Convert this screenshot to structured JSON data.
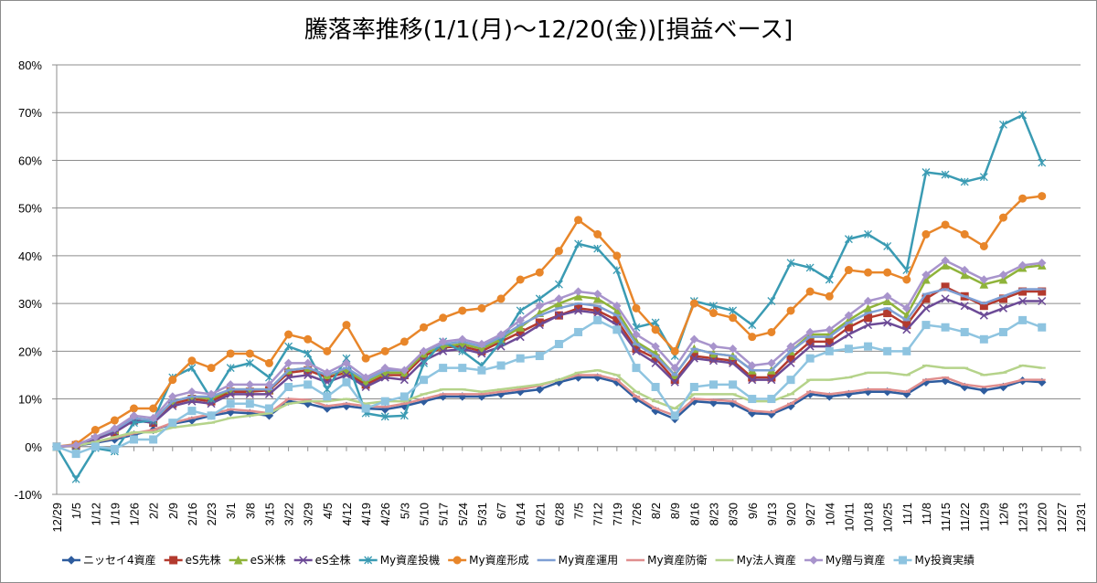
{
  "chart_data": {
    "type": "line",
    "title": "騰落率推移(1/1(月)～12/20(金))[損益ベース]",
    "xlabel": "",
    "ylabel": "",
    "ylim": [
      -0.1,
      0.8
    ],
    "y_ticks": [
      "-10%",
      "0%",
      "10%",
      "20%",
      "30%",
      "40%",
      "50%",
      "60%",
      "70%",
      "80%"
    ],
    "x_ticks": [
      "12/29",
      "1/5",
      "1/12",
      "1/19",
      "1/26",
      "2/2",
      "2/9",
      "2/16",
      "2/23",
      "3/1",
      "3/8",
      "3/15",
      "3/22",
      "3/29",
      "4/5",
      "4/12",
      "4/19",
      "4/26",
      "5/3",
      "5/10",
      "5/17",
      "5/24",
      "5/31",
      "6/7",
      "6/14",
      "6/21",
      "6/28",
      "7/5",
      "7/12",
      "7/19",
      "7/26",
      "8/2",
      "8/9",
      "8/16",
      "8/23",
      "8/30",
      "9/6",
      "9/13",
      "9/20",
      "9/27",
      "10/4",
      "10/11",
      "10/18",
      "10/25",
      "11/1",
      "11/8",
      "11/15",
      "11/22",
      "11/29",
      "12/6",
      "12/13",
      "12/20",
      "12/27",
      "12/31"
    ],
    "grid": "horizontal",
    "legend_position": "bottom",
    "series": [
      {
        "name": "ニッセイ4資産",
        "color": "#2e5c9e",
        "marker": "diamond",
        "values": [
          0,
          0.2,
          0.8,
          1.5,
          2.5,
          3.5,
          4.8,
          5.5,
          6.5,
          7.2,
          7.0,
          6.5,
          9.5,
          9.0,
          8.0,
          8.5,
          8.0,
          7.8,
          8.5,
          9.5,
          10.5,
          10.5,
          10.5,
          11.0,
          11.5,
          12.0,
          13.5,
          14.5,
          14.5,
          13.5,
          10.0,
          7.5,
          5.8,
          9.5,
          9.2,
          9.0,
          7.0,
          6.8,
          8.5,
          11.0,
          10.5,
          11.0,
          11.5,
          11.5,
          11.0,
          13.5,
          13.8,
          12.5,
          11.8,
          12.5,
          13.8,
          13.5
        ]
      },
      {
        "name": "eS先株",
        "color": "#b33a2e",
        "marker": "square",
        "values": [
          0,
          0.3,
          1.5,
          3.0,
          5.5,
          5.0,
          9.0,
          10.0,
          9.5,
          11.5,
          11.5,
          11.8,
          15.5,
          16.0,
          14.5,
          15.5,
          13.0,
          15.0,
          15.0,
          19.0,
          20.8,
          21.0,
          20.0,
          22.0,
          24.0,
          26.0,
          27.5,
          29.0,
          28.5,
          26.5,
          20.5,
          18.5,
          14.0,
          19.0,
          18.5,
          18.0,
          14.5,
          14.5,
          18.5,
          22.0,
          22.0,
          25.0,
          27.0,
          28.0,
          25.5,
          31.0,
          33.5,
          31.5,
          29.5,
          31.0,
          32.5,
          32.5
        ]
      },
      {
        "name": "eS米株",
        "color": "#8fb33a",
        "marker": "triangle",
        "values": [
          0,
          0.2,
          1.8,
          3.5,
          6.0,
          5.5,
          9.5,
          10.5,
          10.0,
          12.0,
          12.0,
          12.0,
          16.0,
          16.5,
          15.0,
          16.0,
          13.5,
          15.5,
          15.5,
          19.5,
          21.0,
          21.5,
          20.5,
          22.5,
          25.0,
          28.0,
          30.0,
          31.5,
          31.0,
          28.5,
          22.0,
          19.5,
          15.0,
          20.5,
          19.5,
          19.0,
          16.0,
          16.0,
          20.0,
          23.5,
          23.5,
          26.5,
          29.0,
          30.5,
          27.5,
          35.0,
          38.0,
          36.0,
          34.0,
          35.0,
          37.5,
          38.0
        ]
      },
      {
        "name": "eS全株",
        "color": "#6c4a96",
        "marker": "x",
        "values": [
          0,
          0.1,
          1.5,
          3.0,
          5.5,
          5.0,
          8.5,
          9.5,
          9.0,
          11.0,
          11.0,
          11.0,
          14.5,
          15.0,
          13.5,
          15.0,
          12.5,
          14.5,
          14.0,
          18.0,
          20.0,
          20.5,
          19.5,
          21.0,
          23.0,
          25.5,
          27.5,
          28.5,
          28.0,
          25.5,
          20.0,
          17.5,
          13.5,
          18.5,
          18.0,
          17.5,
          14.0,
          14.0,
          17.5,
          21.0,
          21.0,
          23.5,
          25.5,
          26.0,
          24.5,
          29.0,
          31.0,
          29.5,
          27.5,
          29.0,
          30.5,
          30.5
        ]
      },
      {
        "name": "My資産投機",
        "color": "#3a9bb3",
        "marker": "asterisk",
        "values": [
          0,
          -6.8,
          -0.3,
          -1.0,
          5.0,
          5.5,
          14.5,
          16.5,
          10.0,
          16.5,
          17.5,
          14.5,
          21.0,
          19.5,
          12.0,
          18.5,
          7.0,
          6.3,
          6.5,
          17.5,
          22.0,
          20.0,
          17.0,
          22.0,
          28.5,
          31.0,
          34.0,
          42.5,
          41.5,
          37.0,
          25.0,
          26.0,
          19.0,
          30.5,
          29.5,
          28.5,
          25.5,
          30.5,
          38.5,
          37.5,
          35.0,
          43.5,
          44.5,
          42.0,
          37.0,
          57.5,
          57.0,
          55.5,
          56.5,
          67.5,
          69.5,
          59.5
        ]
      },
      {
        "name": "My資産形成",
        "color": "#e8862a",
        "marker": "circle",
        "values": [
          0,
          0.5,
          3.5,
          5.5,
          8.0,
          8.0,
          14.0,
          18.0,
          16.5,
          19.5,
          19.5,
          17.5,
          23.5,
          22.5,
          20.0,
          25.5,
          18.5,
          20.0,
          22.0,
          25.0,
          27.0,
          28.5,
          29.0,
          31.0,
          35.0,
          36.5,
          41.0,
          47.5,
          44.5,
          40.0,
          29.0,
          24.5,
          20.0,
          30.0,
          28.0,
          27.0,
          23.0,
          24.0,
          28.5,
          32.5,
          31.5,
          37.0,
          36.5,
          36.5,
          35.0,
          44.5,
          46.5,
          44.5,
          42.0,
          48.0,
          52.0,
          52.5
        ]
      },
      {
        "name": "My資産運用",
        "color": "#7e9fd4",
        "marker": "dash",
        "values": [
          0,
          0.3,
          2.0,
          3.5,
          6.0,
          5.5,
          9.5,
          10.5,
          10.5,
          12.0,
          12.0,
          12.0,
          16.0,
          16.5,
          15.0,
          16.5,
          14.0,
          16.0,
          16.0,
          20.0,
          21.5,
          22.0,
          21.0,
          23.0,
          25.5,
          27.5,
          29.0,
          30.0,
          29.5,
          27.5,
          21.5,
          19.0,
          15.0,
          20.5,
          19.5,
          19.0,
          16.0,
          16.0,
          20.0,
          23.0,
          23.0,
          26.0,
          28.0,
          29.0,
          26.5,
          32.0,
          33.0,
          31.5,
          30.0,
          31.5,
          33.0,
          33.0
        ]
      },
      {
        "name": "My資産防衛",
        "color": "#e08e8e",
        "marker": "dash",
        "values": [
          0,
          0.2,
          1.0,
          1.8,
          2.8,
          3.5,
          5.0,
          6.0,
          6.8,
          7.8,
          7.5,
          7.0,
          10.0,
          9.8,
          8.5,
          9.0,
          8.5,
          8.3,
          9.0,
          10.0,
          11.0,
          11.0,
          11.0,
          11.5,
          12.0,
          12.8,
          14.0,
          15.0,
          15.0,
          14.0,
          10.5,
          8.0,
          6.5,
          10.0,
          9.8,
          9.5,
          7.5,
          7.2,
          9.0,
          11.5,
          11.0,
          11.5,
          12.0,
          12.0,
          11.5,
          14.0,
          14.5,
          13.0,
          12.5,
          13.0,
          14.0,
          14.0
        ]
      },
      {
        "name": "My法人資産",
        "color": "#b5d38a",
        "marker": "dash",
        "values": [
          0,
          0.2,
          1.0,
          2.0,
          3.0,
          3.0,
          4.0,
          4.5,
          5.0,
          6.0,
          6.5,
          7.0,
          9.0,
          9.5,
          9.5,
          10.0,
          9.0,
          9.5,
          9.5,
          11.0,
          12.0,
          12.0,
          11.5,
          12.0,
          12.5,
          13.0,
          14.0,
          15.5,
          16.0,
          15.0,
          11.5,
          9.5,
          8.0,
          11.0,
          11.0,
          11.0,
          9.5,
          9.5,
          11.0,
          14.0,
          14.0,
          14.5,
          15.5,
          15.5,
          15.0,
          17.0,
          16.5,
          16.5,
          15.0,
          15.5,
          17.0,
          16.5
        ]
      },
      {
        "name": "My贈与資産",
        "color": "#a894cc",
        "marker": "diamond",
        "values": [
          0,
          0.3,
          2.0,
          3.8,
          6.5,
          6.0,
          10.5,
          11.5,
          11.0,
          13.0,
          13.0,
          13.0,
          17.5,
          17.5,
          15.5,
          17.5,
          14.5,
          16.5,
          16.0,
          20.0,
          22.0,
          22.5,
          21.5,
          23.5,
          26.5,
          29.5,
          31.0,
          32.5,
          32.0,
          29.5,
          23.5,
          21.0,
          16.5,
          22.5,
          21.0,
          20.5,
          17.0,
          17.5,
          21.0,
          24.0,
          24.5,
          27.5,
          30.5,
          31.5,
          29.0,
          36.0,
          39.0,
          37.0,
          35.0,
          36.0,
          38.0,
          38.5
        ]
      },
      {
        "name": "My投資実績",
        "color": "#8ec4e0",
        "marker": "square",
        "values": [
          0,
          -1.5,
          0,
          -0.5,
          1.5,
          1.5,
          5.0,
          7.5,
          6.5,
          9.0,
          9.0,
          8.0,
          12.5,
          13.0,
          10.5,
          13.5,
          8.0,
          9.5,
          10.5,
          14.0,
          16.5,
          16.5,
          16.0,
          17.0,
          18.5,
          19.0,
          21.5,
          24.0,
          26.5,
          24.5,
          16.5,
          12.5,
          6.5,
          12.5,
          13.0,
          13.0,
          10.0,
          10.0,
          14.0,
          18.5,
          20.0,
          20.5,
          21.0,
          20.0,
          20.0,
          25.5,
          25.0,
          24.0,
          22.5,
          24.0,
          26.5,
          25.0
        ]
      }
    ]
  }
}
